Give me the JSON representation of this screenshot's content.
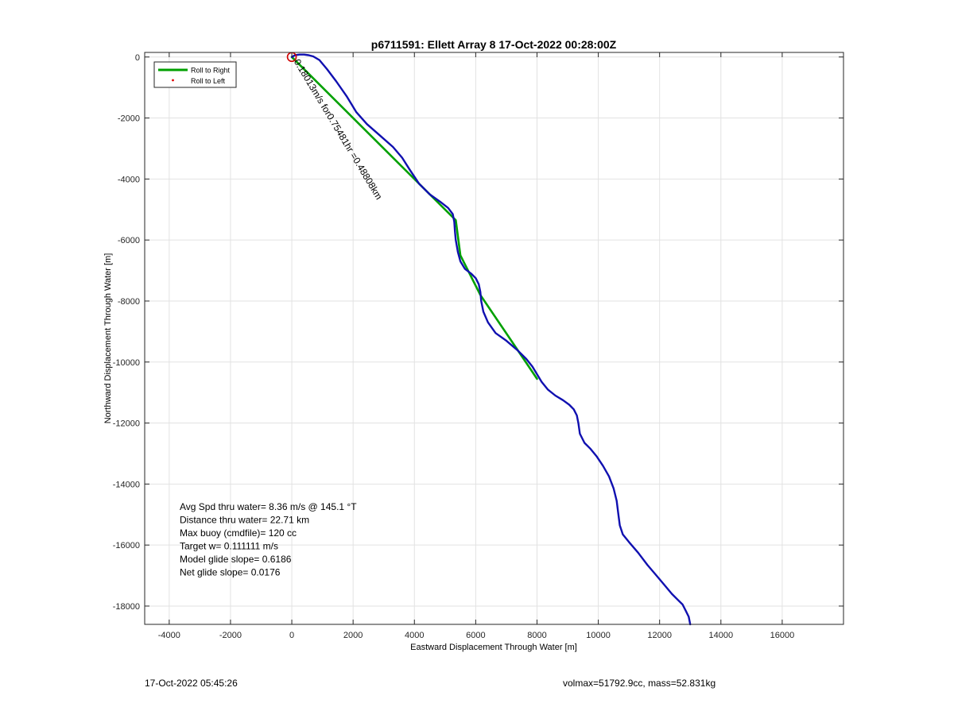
{
  "footer": {
    "timestamp": "17-Oct-2022 05:45:26",
    "volmax_mass": "volmax=51792.9cc, mass=52.831kg"
  },
  "chart_data": {
    "type": "line",
    "title": "p6711591: Ellett Array 8 17-Oct-2022 00:28:00Z",
    "xlabel": "Eastward Displacement Through Water [m]",
    "ylabel": "Northward Displacement Through Water [m]",
    "xlim": [
      -4800,
      18000
    ],
    "ylim": [
      -18600,
      150
    ],
    "xticks": [
      -4000,
      -2000,
      0,
      2000,
      4000,
      6000,
      8000,
      10000,
      12000,
      14000,
      16000
    ],
    "yticks": [
      0,
      -2000,
      -4000,
      -6000,
      -8000,
      -10000,
      -12000,
      -14000,
      -16000,
      -18000
    ],
    "xtick_labels": [
      "-4000",
      "-2000",
      "0",
      "2000",
      "4000",
      "6000",
      "8000",
      "10000",
      "12000",
      "14000",
      "16000"
    ],
    "ytick_labels": [
      "0",
      "-2000",
      "-4000",
      "-6000",
      "-8000",
      "-10000",
      "-12000",
      "-14000",
      "-16000",
      "-18000"
    ],
    "grid": true,
    "legend_position": "top-left",
    "legend": [
      {
        "label": "Roll to Right",
        "color": "#00a000",
        "marker": "line"
      },
      {
        "label": "Roll to Left",
        "color": "#e00000",
        "marker": "dot"
      }
    ],
    "series": [
      {
        "color": "#1010b0",
        "x": [
          0,
          100,
          250,
          400,
          550,
          700,
          900,
          1150,
          1450,
          1800,
          2100,
          2450,
          2850,
          3300,
          3600,
          3850,
          4150,
          4500,
          4850,
          5100,
          5250,
          5300,
          5320,
          5350,
          5420,
          5500,
          5650,
          5850,
          6000,
          6100,
          6150,
          6180,
          6250,
          6400,
          6650,
          7000,
          7350,
          7650,
          7850,
          8000,
          8150,
          8350,
          8600,
          8850,
          9050,
          9200,
          9300,
          9350,
          9400,
          9550,
          9750,
          9950,
          10150,
          10350,
          10500,
          10600,
          10650,
          10700,
          10800,
          11000,
          11300,
          11600,
          11900,
          12150,
          12400,
          12600,
          12750,
          12850,
          12950,
          13000
        ],
        "y": [
          0,
          60,
          80,
          80,
          60,
          20,
          -100,
          -400,
          -800,
          -1300,
          -1800,
          -2200,
          -2550,
          -2950,
          -3300,
          -3700,
          -4150,
          -4500,
          -4750,
          -4950,
          -5150,
          -5400,
          -5700,
          -6000,
          -6400,
          -6700,
          -6950,
          -7100,
          -7250,
          -7450,
          -7700,
          -8000,
          -8350,
          -8700,
          -9050,
          -9300,
          -9600,
          -9900,
          -10150,
          -10400,
          -10650,
          -10900,
          -11100,
          -11250,
          -11400,
          -11550,
          -11750,
          -12000,
          -12350,
          -12650,
          -12850,
          -13100,
          -13400,
          -13750,
          -14150,
          -14550,
          -14950,
          -15350,
          -15650,
          -15900,
          -16250,
          -16650,
          -17000,
          -17300,
          -17600,
          -17800,
          -17950,
          -18150,
          -18350,
          -18600
        ]
      },
      {
        "name": "Roll to Right",
        "color": "#00a000",
        "x": [
          0,
          5350,
          5500,
          6150,
          7700,
          8000
        ],
        "y": [
          0,
          -5350,
          -6500,
          -7800,
          -10100,
          -10550
        ]
      }
    ],
    "start_marker": {
      "x": 0,
      "y": 0,
      "color": "#d00000"
    },
    "annotation": {
      "text": "0.18013m/s for0.75481hr =0.48808km",
      "x": 60,
      "y": -150,
      "rotation_deg": 59
    },
    "stats": [
      "Avg Spd thru water=  8.36 m/s @ 145.1 °T",
      "Distance thru water= 22.71 km",
      "Max buoy (cmdfile)= 120 cc",
      "Target w= 0.111111 m/s",
      "Model glide slope= 0.6186",
      "Net glide slope= 0.0176"
    ]
  }
}
